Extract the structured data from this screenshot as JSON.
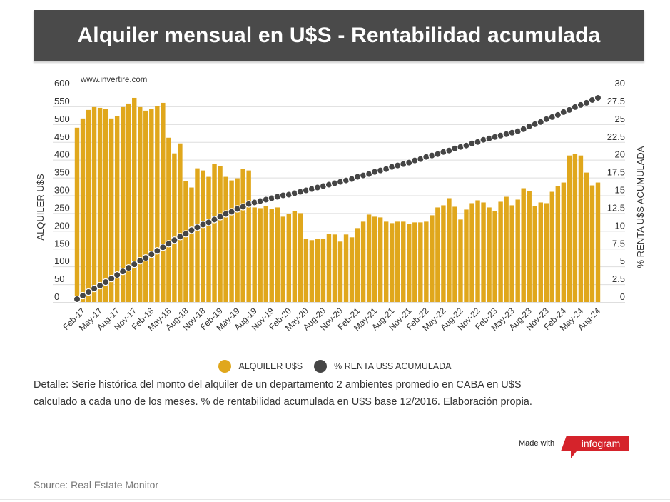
{
  "header": {
    "title": "Alquiler mensual en U$S - Rentabilidad acumulada"
  },
  "watermark": "www.invertire.com",
  "legend": {
    "items": [
      {
        "label": "ALQUILER U$S",
        "color": "#e0a71c"
      },
      {
        "label": "% RENTA U$S ACUMULADA",
        "color": "#454545"
      }
    ]
  },
  "detail": {
    "line1": "Detalle: Serie histórica del monto del alquiler de un departamento 2 ambientes promedio en CABA en U$S",
    "line2": "calculado a cada uno de los meses. % de rentabilidad acumulada en U$S base 12/2016. Elaboración propia."
  },
  "branding": {
    "made_with": "Made with",
    "logo_text": "infogram",
    "logo_color": "#d5232b"
  },
  "source": "Source: Real Estate Monitor",
  "chart_data": {
    "type": "bar",
    "title": "Alquiler mensual en U$S - Rentabilidad acumulada",
    "xlabel": "",
    "ylabel": "ALQUILER U$S",
    "y2label": "% RENTA U$S ACUMULADA",
    "ylim": [
      0,
      600
    ],
    "y2lim": [
      0,
      30
    ],
    "yticks": [
      0,
      50,
      100,
      150,
      200,
      250,
      300,
      350,
      400,
      450,
      500,
      550,
      600
    ],
    "y2ticks": [
      "0",
      "2.5",
      "5",
      "7.5",
      "10",
      "12.5",
      "15",
      "17.5",
      "20",
      "22.5",
      "25",
      "27.5",
      "30"
    ],
    "grid": true,
    "legend_position": "bottom",
    "start_month": "Jan-17",
    "end_month": "Aug-24",
    "xtick_labels": [
      "Feb-17",
      "May-17",
      "Aug-17",
      "Nov-17",
      "Feb-18",
      "May-18",
      "Aug-18",
      "Nov-18",
      "Feb-19",
      "May-19",
      "Aug-19",
      "Nov-19",
      "Feb-20",
      "May-20",
      "Aug-20",
      "Nov-20",
      "Feb-21",
      "May-21",
      "Aug-21",
      "Nov-21",
      "Feb-22",
      "May-22",
      "Aug-22",
      "Nov-22",
      "Feb-23",
      "May-23",
      "Aug-23",
      "Nov-23",
      "Feb-24",
      "May-24",
      "Aug-24"
    ],
    "xtick_start_index": 1,
    "xtick_step": 3,
    "series": [
      {
        "name": "ALQUILER U$S",
        "type": "bar",
        "axis": "left",
        "color": "#e0a71c",
        "values": [
          490,
          516,
          540,
          548,
          546,
          542,
          516,
          522,
          548,
          558,
          574,
          548,
          538,
          542,
          550,
          560,
          462,
          418,
          446,
          340,
          322,
          376,
          370,
          352,
          388,
          382,
          352,
          342,
          348,
          374,
          370,
          266,
          264,
          270,
          262,
          266,
          240,
          248,
          256,
          250,
          178,
          174,
          178,
          178,
          192,
          190,
          170,
          190,
          182,
          208,
          226,
          246,
          240,
          238,
          226,
          222,
          226,
          226,
          220,
          224,
          224,
          226,
          244,
          266,
          272,
          292,
          268,
          232,
          260,
          278,
          286,
          280,
          266,
          256,
          282,
          296,
          272,
          288,
          320,
          312,
          270,
          280,
          278,
          310,
          326,
          336,
          412,
          416,
          412,
          364,
          328,
          336
        ]
      },
      {
        "name": "% RENTA U$S ACUMULADA",
        "type": "line-dots",
        "axis": "right",
        "color": "#454545",
        "values": [
          0.4,
          0.9,
          1.4,
          1.9,
          2.3,
          2.8,
          3.3,
          3.8,
          4.3,
          4.8,
          5.3,
          5.8,
          6.2,
          6.7,
          7.2,
          7.7,
          8.2,
          8.7,
          9.2,
          9.6,
          10.1,
          10.5,
          10.9,
          11.2,
          11.6,
          12.0,
          12.4,
          12.7,
          13.1,
          13.4,
          13.8,
          14.0,
          14.2,
          14.4,
          14.6,
          14.8,
          15.0,
          15.1,
          15.3,
          15.5,
          15.7,
          15.9,
          16.1,
          16.3,
          16.5,
          16.7,
          16.9,
          17.1,
          17.3,
          17.6,
          17.8,
          18.0,
          18.3,
          18.5,
          18.7,
          19.0,
          19.2,
          19.4,
          19.6,
          19.9,
          20.1,
          20.4,
          20.6,
          20.8,
          21.1,
          21.3,
          21.6,
          21.8,
          22.0,
          22.3,
          22.5,
          22.8,
          23.0,
          23.2,
          23.4,
          23.6,
          23.8,
          24.0,
          24.3,
          24.7,
          25.0,
          25.3,
          25.7,
          26.0,
          26.3,
          26.7,
          27.0,
          27.4,
          27.7,
          28.0,
          28.4,
          28.7
        ]
      }
    ]
  }
}
